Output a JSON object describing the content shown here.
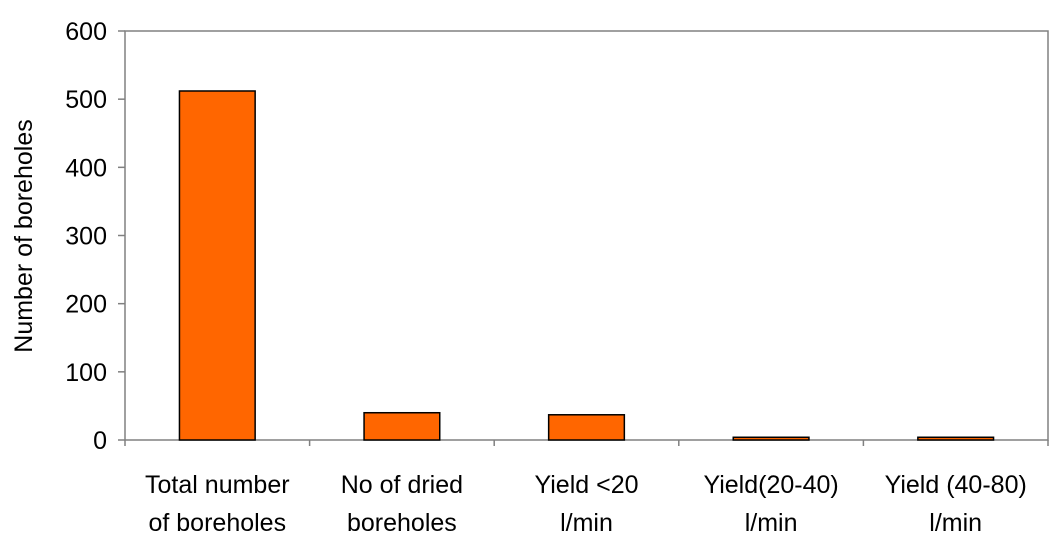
{
  "chart_data": {
    "type": "bar",
    "title": "",
    "xlabel": "",
    "ylabel": "Number of boreholes",
    "ylim": [
      0,
      600
    ],
    "yticks": [
      0,
      100,
      200,
      300,
      400,
      500,
      600
    ],
    "grid": false,
    "legend": "none",
    "categories": [
      [
        "Total number",
        "of boreholes"
      ],
      [
        "No of dried",
        "boreholes"
      ],
      [
        "Yield <20",
        "l/min"
      ],
      [
        "Yield(20-40)",
        "l/min"
      ],
      [
        "Yield (40-80)",
        "l/min"
      ]
    ],
    "values": [
      512,
      40,
      37,
      4,
      4
    ],
    "colors": {
      "bar_fill": "#FF6600",
      "bar_stroke": "#000000",
      "axis": "#000000"
    }
  }
}
